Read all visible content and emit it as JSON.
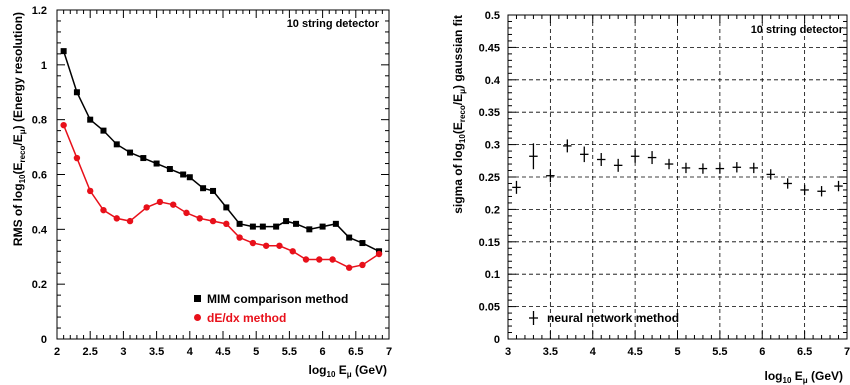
{
  "chart_data": [
    {
      "type": "line",
      "annotation": "10 string detector",
      "xlabel": "log10 Eμ (GeV)",
      "ylabel": "RMS of log10(Ereco/Eμ) (Energy resolution)",
      "xlim": [
        2,
        7
      ],
      "ylim": [
        0,
        1.2
      ],
      "xticks": [
        "2",
        "2.5",
        "3",
        "3.5",
        "4",
        "4.5",
        "5",
        "5.5",
        "6",
        "6.5",
        "7"
      ],
      "yticks": [
        "0",
        "0.2",
        "0.4",
        "0.6",
        "0.8",
        "1",
        "1.2"
      ],
      "legend_position": "bottom-right",
      "series": [
        {
          "name": "MIM comparison method",
          "color": "#000000",
          "marker": "square",
          "points": [
            [
              2.1,
              1.05
            ],
            [
              2.3,
              0.9
            ],
            [
              2.5,
              0.8
            ],
            [
              2.7,
              0.76
            ],
            [
              2.9,
              0.71
            ],
            [
              3.1,
              0.68
            ],
            [
              3.3,
              0.66
            ],
            [
              3.5,
              0.64
            ],
            [
              3.7,
              0.62
            ],
            [
              3.9,
              0.6
            ],
            [
              4.0,
              0.59
            ],
            [
              4.2,
              0.55
            ],
            [
              4.35,
              0.54
            ],
            [
              4.55,
              0.48
            ],
            [
              4.75,
              0.42
            ],
            [
              4.95,
              0.41
            ],
            [
              5.1,
              0.41
            ],
            [
              5.3,
              0.41
            ],
            [
              5.45,
              0.43
            ],
            [
              5.6,
              0.42
            ],
            [
              5.8,
              0.4
            ],
            [
              6.0,
              0.41
            ],
            [
              6.2,
              0.42
            ],
            [
              6.4,
              0.37
            ],
            [
              6.6,
              0.35
            ],
            [
              6.85,
              0.32
            ]
          ]
        },
        {
          "name": "dE/dx method",
          "color": "#e8101a",
          "marker": "circle",
          "points": [
            [
              2.1,
              0.78
            ],
            [
              2.3,
              0.66
            ],
            [
              2.5,
              0.54
            ],
            [
              2.7,
              0.47
            ],
            [
              2.9,
              0.44
            ],
            [
              3.1,
              0.43
            ],
            [
              3.35,
              0.48
            ],
            [
              3.55,
              0.5
            ],
            [
              3.75,
              0.49
            ],
            [
              3.95,
              0.46
            ],
            [
              4.15,
              0.44
            ],
            [
              4.35,
              0.43
            ],
            [
              4.55,
              0.42
            ],
            [
              4.75,
              0.37
            ],
            [
              4.95,
              0.35
            ],
            [
              5.15,
              0.34
            ],
            [
              5.35,
              0.34
            ],
            [
              5.55,
              0.32
            ],
            [
              5.75,
              0.29
            ],
            [
              5.95,
              0.29
            ],
            [
              6.15,
              0.29
            ],
            [
              6.4,
              0.26
            ],
            [
              6.6,
              0.27
            ],
            [
              6.85,
              0.31
            ]
          ]
        }
      ]
    },
    {
      "type": "scatter",
      "annotation": "10 string detector",
      "xlabel": "log10 Eμ (GeV)",
      "ylabel": "sigma of log10(Ereco/Eμ) gaussian fit",
      "xlim": [
        3,
        7
      ],
      "ylim": [
        0,
        0.5
      ],
      "xticks": [
        "3",
        "3.5",
        "4",
        "4.5",
        "5",
        "5.5",
        "6",
        "6.5",
        "7"
      ],
      "yticks": [
        "0",
        "0.05",
        "0.1",
        "0.15",
        "0.2",
        "0.25",
        "0.3",
        "0.35",
        "0.4",
        "0.45",
        "0.5"
      ],
      "grid": true,
      "legend_position": "bottom-left",
      "series": [
        {
          "name": "neural network method",
          "color": "#000000",
          "marker": "cross-errorbar",
          "points": [
            [
              3.1,
              0.234,
              0.1,
              0.01
            ],
            [
              3.3,
              0.282,
              0.1,
              0.02
            ],
            [
              3.5,
              0.252,
              0.1,
              0.01
            ],
            [
              3.7,
              0.298,
              0.1,
              0.01
            ],
            [
              3.9,
              0.285,
              0.1,
              0.012
            ],
            [
              4.1,
              0.277,
              0.1,
              0.01
            ],
            [
              4.3,
              0.268,
              0.1,
              0.01
            ],
            [
              4.5,
              0.282,
              0.1,
              0.01
            ],
            [
              4.7,
              0.28,
              0.1,
              0.01
            ],
            [
              4.9,
              0.27,
              0.1,
              0.008
            ],
            [
              5.1,
              0.264,
              0.1,
              0.008
            ],
            [
              5.3,
              0.263,
              0.1,
              0.008
            ],
            [
              5.5,
              0.263,
              0.1,
              0.008
            ],
            [
              5.7,
              0.265,
              0.1,
              0.008
            ],
            [
              5.9,
              0.264,
              0.1,
              0.008
            ],
            [
              6.1,
              0.254,
              0.1,
              0.008
            ],
            [
              6.3,
              0.24,
              0.1,
              0.008
            ],
            [
              6.5,
              0.23,
              0.1,
              0.008
            ],
            [
              6.7,
              0.228,
              0.1,
              0.008
            ],
            [
              6.9,
              0.236,
              0.1,
              0.008
            ]
          ]
        }
      ]
    }
  ]
}
